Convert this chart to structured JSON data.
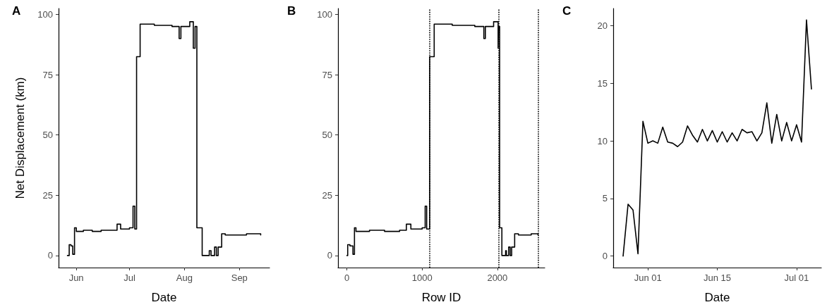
{
  "chart_data": [
    {
      "type": "step",
      "title": "A",
      "xlabel": "Date",
      "ylabel": "Net Displacement (km)",
      "xlim": [
        "--05-22",
        "--09-18"
      ],
      "ylim": [
        -5,
        102.5
      ],
      "yticks": [
        0,
        25,
        50,
        75,
        100
      ],
      "xticks": [
        {
          "value": "--06-01",
          "label": "Jun"
        },
        {
          "value": "--07-01",
          "label": "Jul"
        },
        {
          "value": "--08-01",
          "label": "Aug"
        },
        {
          "value": "--09-01",
          "label": "Sep"
        }
      ],
      "series": [
        {
          "color": "#000000",
          "x": [
            "--05-27",
            "--05-28",
            "--05-29",
            "--05-30",
            "--05-31",
            "--06-01",
            "--06-05",
            "--06-10",
            "--06-15",
            "--06-20",
            "--06-24",
            "--06-26",
            "--07-01",
            "--07-03",
            "--07-04",
            "--07-05",
            "--07-07",
            "--07-15",
            "--07-25",
            "--07-29",
            "--07-30",
            "--08-04",
            "--08-06",
            "--08-07",
            "--08-08",
            "--08-11",
            "--08-15",
            "--08-16",
            "--08-18",
            "--08-19",
            "--08-20",
            "--08-22",
            "--08-24",
            "--09-05",
            "--09-13"
          ],
          "values": [
            0,
            4.5,
            4,
            0.5,
            11.5,
            10,
            10.5,
            10,
            10.5,
            10.5,
            13,
            11,
            11.5,
            20.5,
            11,
            82.5,
            96,
            95.5,
            95,
            90,
            95,
            97,
            86,
            95,
            11.5,
            0,
            2,
            0,
            3.5,
            0,
            3.5,
            9,
            8.5,
            9,
            8.5
          ]
        }
      ]
    },
    {
      "type": "step",
      "title": "B",
      "xlabel": "Row ID",
      "xlim": [
        -119,
        2630
      ],
      "xticks": [
        0,
        1000,
        2000
      ],
      "ylim": [
        -5,
        102.5
      ],
      "yticks": [
        0,
        25,
        50,
        75,
        100
      ],
      "ref_lines": [
        {
          "axis": "x",
          "value": 1100,
          "line_style": "dotted",
          "color": "#000000"
        },
        {
          "axis": "x",
          "value": 2020,
          "line_style": "dotted",
          "color": "#000000"
        },
        {
          "axis": "x",
          "value": 2540,
          "line_style": "dotted",
          "color": "#000000"
        }
      ],
      "series": [
        {
          "color": "#000000",
          "x": [
            0,
            10,
            40,
            80,
            100,
            120,
            300,
            500,
            700,
            790,
            850,
            1000,
            1040,
            1060,
            1100,
            1160,
            1400,
            1700,
            1820,
            1840,
            1950,
            2010,
            2015,
            2030,
            2060,
            2110,
            2120,
            2150,
            2170,
            2190,
            2230,
            2280,
            2450,
            2540
          ],
          "values": [
            0,
            4.5,
            4,
            0.5,
            11.5,
            10,
            10.5,
            10,
            10.5,
            13,
            11,
            11.5,
            20.5,
            11,
            82.5,
            96,
            95.5,
            95,
            90,
            95,
            97,
            86,
            95,
            11.5,
            0,
            2,
            0,
            3.5,
            0,
            3.5,
            9,
            8.5,
            9,
            8.5
          ]
        }
      ]
    },
    {
      "type": "line",
      "title": "C",
      "xlabel": "Date",
      "xlim": [
        "--05-25",
        "--07-06"
      ],
      "ylim": [
        -1,
        21.5
      ],
      "yticks": [
        0,
        5,
        10,
        15,
        20
      ],
      "xticks": [
        {
          "value": "--06-01",
          "label": "Jun 01"
        },
        {
          "value": "--06-15",
          "label": "Jun 15"
        },
        {
          "value": "--07-01",
          "label": "Jul 01"
        }
      ],
      "series": [
        {
          "color": "#000000",
          "x": [
            "--05-27",
            "--05-28",
            "--05-29",
            "--05-30",
            "--05-31",
            "--06-01",
            "--06-02",
            "--06-03",
            "--06-04",
            "--06-05",
            "--06-06",
            "--06-07",
            "--06-08",
            "--06-09",
            "--06-10",
            "--06-11",
            "--06-12",
            "--06-13",
            "--06-14",
            "--06-15",
            "--06-16",
            "--06-17",
            "--06-18",
            "--06-19",
            "--06-20",
            "--06-21",
            "--06-22",
            "--06-23",
            "--06-24",
            "--06-25",
            "--06-26",
            "--06-27",
            "--06-28",
            "--06-29",
            "--06-30",
            "--07-01",
            "--07-02",
            "--07-03",
            "--07-04"
          ],
          "values": [
            0,
            4.5,
            4,
            0.2,
            11.7,
            9.8,
            10,
            9.8,
            11.2,
            9.9,
            9.8,
            9.5,
            9.9,
            11.3,
            10.5,
            9.9,
            11,
            10,
            10.9,
            9.9,
            10.8,
            9.9,
            10.7,
            10,
            11,
            10.7,
            10.8,
            10,
            10.7,
            13.3,
            9.8,
            12.3,
            10,
            11.6,
            10,
            11.4,
            9.9,
            20.5,
            14.5
          ]
        }
      ]
    }
  ]
}
